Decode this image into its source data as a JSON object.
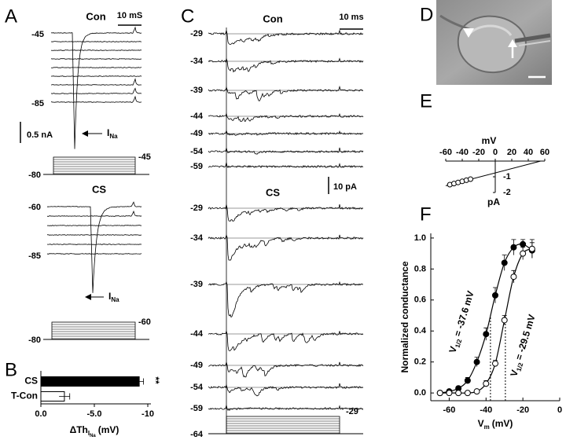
{
  "panels": {
    "A": {
      "letter": "A",
      "con": {
        "title": "Con",
        "scale_time": "10 mS",
        "v_top": -45,
        "v_bottom": -85,
        "scale_current": "0.5 nA",
        "current_main": "I",
        "current_sub": "Na",
        "step": -45,
        "hold": -80
      },
      "cs": {
        "title": "CS",
        "v_top": -60,
        "v_bottom": -85,
        "current_main": "I",
        "current_sub": "Na",
        "step": -60,
        "hold": -80
      }
    },
    "B": {
      "letter": "B"
    },
    "C": {
      "letter": "C",
      "con": {
        "title": "Con",
        "scale_time": "10 ms",
        "voltages": [
          -29,
          -34,
          -39,
          -44,
          -49,
          -54,
          -59
        ]
      },
      "scale_current": "10 pA",
      "cs": {
        "title": "CS",
        "voltages": [
          -29,
          -34,
          -39,
          -44,
          -49,
          -54,
          -59
        ],
        "step": -29,
        "hold": -64
      }
    },
    "D": {
      "letter": "D"
    },
    "E": {
      "letter": "E"
    },
    "F": {
      "letter": "F"
    }
  },
  "chart_data": [
    {
      "type": "bar",
      "orientation": "horizontal",
      "panel": "B",
      "categories": [
        "CS",
        "T-Con"
      ],
      "values": [
        -9.2,
        -2.2
      ],
      "errors": [
        0.4,
        0.5
      ],
      "colors": [
        "#000000",
        "#ffffff"
      ],
      "xlim": [
        0,
        -10
      ],
      "xticks": [
        {
          "value": 0,
          "label": "0.0"
        },
        {
          "value": -5,
          "label": "-5.0"
        },
        -10
      ],
      "x_label": {
        "main": "ΔTh",
        "sub": "I",
        "subsub": "Na",
        "unit": "(mV)"
      },
      "annotation": "**"
    },
    {
      "type": "scatter",
      "panel": "E",
      "x_label": "mV",
      "y_label": "pA",
      "x": [
        -55,
        -50,
        -45,
        -40,
        -35,
        -30
      ],
      "values": [
        -1.5,
        -1.43,
        -1.36,
        -1.29,
        -1.22,
        -1.15
      ],
      "fit": {
        "x": [
          -60,
          55
        ],
        "y": [
          -1.57,
          0
        ]
      },
      "xlim": [
        -60,
        60
      ],
      "xticks": [
        -60,
        -40,
        -20,
        0,
        20,
        40,
        60
      ],
      "ylim": [
        -2,
        0
      ],
      "yticks": [
        -1,
        -2
      ]
    },
    {
      "type": "scatter",
      "panel": "F",
      "y_label": "Normalized conductance",
      "x_label": {
        "main": "V",
        "sub": "m",
        "unit": "(mV)"
      },
      "x": [
        -65,
        -60,
        -55,
        -50,
        -45,
        -40,
        -35,
        -30,
        -25,
        -20,
        -15
      ],
      "series": [
        {
          "marker": "filled",
          "color": "#000000",
          "values": [
            0,
            0.01,
            0.03,
            0.08,
            0.2,
            0.38,
            0.63,
            0.84,
            0.94,
            0.96,
            0.92
          ],
          "errors": [
            0.01,
            0.01,
            0.01,
            0.02,
            0.03,
            0.04,
            0.05,
            0.05,
            0.05,
            0.03,
            0.05
          ],
          "v_half": -37.6,
          "annotation": {
            "main": "V",
            "sub": "1/2",
            "rest": "= -37.6 mV"
          }
        },
        {
          "marker": "open",
          "color": "#000000",
          "values": [
            0,
            0,
            0,
            0,
            0.01,
            0.06,
            0.19,
            0.47,
            0.75,
            0.9,
            0.93
          ],
          "errors": [
            0.01,
            0.01,
            0.01,
            0.01,
            0.01,
            0.02,
            0.02,
            0.03,
            0.04,
            0.04,
            0.06
          ],
          "v_half": -29.5,
          "annotation": {
            "main": "V",
            "sub": "1/2",
            "rest": "= -29.5 mV"
          }
        }
      ],
      "xlim": [
        -70,
        0
      ],
      "xticks": [
        -60,
        -40,
        -20,
        0
      ],
      "ylim": [
        -0.05,
        1.03
      ],
      "yticks": [
        {
          "value": 0,
          "label": "0.0"
        },
        {
          "value": 0.2,
          "label": "0.2"
        },
        {
          "value": 0.4,
          "label": "0.4"
        },
        {
          "value": 0.6,
          "label": "0.6"
        },
        {
          "value": 0.8,
          "label": "0.8"
        },
        {
          "value": 1,
          "label": "1.0"
        }
      ]
    }
  ]
}
